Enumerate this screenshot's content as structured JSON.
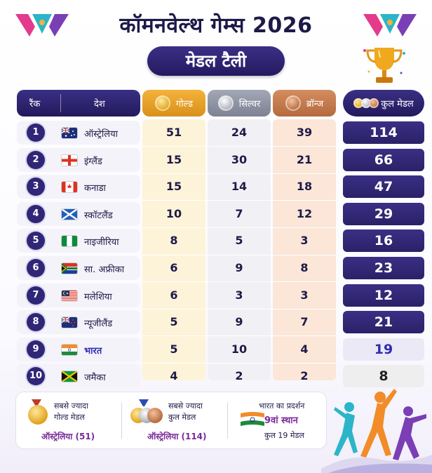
{
  "title": "कॉमनवेल्थ गेम्स 2026",
  "subtitle": "मेडल टैली",
  "headers": {
    "rank": "रैंक",
    "country": "देश",
    "gold": "गोल्ड",
    "silver": "सिल्वर",
    "bronze": "ब्रॉन्ज",
    "total": "कुल मेडल"
  },
  "rows": [
    {
      "rank": "1",
      "country": "ऑस्ट्रेलिया",
      "flag": "australia-flag",
      "gold": "51",
      "silver": "24",
      "bronze": "39",
      "total": "114"
    },
    {
      "rank": "2",
      "country": "इंग्लैंड",
      "flag": "england-flag",
      "gold": "15",
      "silver": "30",
      "bronze": "21",
      "total": "66"
    },
    {
      "rank": "3",
      "country": "कनाडा",
      "flag": "canada-flag",
      "gold": "15",
      "silver": "14",
      "bronze": "18",
      "total": "47"
    },
    {
      "rank": "4",
      "country": "स्कॉटलैंड",
      "flag": "scotland-flag",
      "gold": "10",
      "silver": "7",
      "bronze": "12",
      "total": "29"
    },
    {
      "rank": "5",
      "country": "नाइजीरिया",
      "flag": "nigeria-flag",
      "gold": "8",
      "silver": "5",
      "bronze": "3",
      "total": "16"
    },
    {
      "rank": "6",
      "country": "सा. अफ्रीका",
      "flag": "south-africa-flag",
      "gold": "6",
      "silver": "9",
      "bronze": "8",
      "total": "23"
    },
    {
      "rank": "7",
      "country": "मलेशिया",
      "flag": "malaysia-flag",
      "gold": "6",
      "silver": "3",
      "bronze": "3",
      "total": "12"
    },
    {
      "rank": "8",
      "country": "न्यूजीलैंड",
      "flag": "new-zealand-flag",
      "gold": "5",
      "silver": "9",
      "bronze": "7",
      "total": "21"
    },
    {
      "rank": "9",
      "country": "भारत",
      "flag": "india-flag",
      "gold": "5",
      "silver": "10",
      "bronze": "4",
      "total": "19"
    },
    {
      "rank": "10",
      "country": "जमैका",
      "flag": "jamaica-flag",
      "gold": "4",
      "silver": "2",
      "bronze": "2",
      "total": "8"
    }
  ],
  "footer": {
    "most_gold": {
      "line1": "सबसे ज्यादा",
      "line2": "गोल्ड मेडल",
      "value": "ऑस्ट्रेलिया (51)"
    },
    "most_total": {
      "line1": "सबसे ज्यादा",
      "line2": "कुल मेडल",
      "value": "ऑस्ट्रेलिया (114)"
    },
    "india": {
      "line1": "भारत का प्रदर्शन",
      "position": "9वां स्थान",
      "total": "कुल 19 मेडल"
    }
  },
  "colors": {
    "navy": "#2a2168",
    "gold": "#e5a020",
    "silver": "#9a9eae",
    "bronze": "#c07a4c",
    "accent_purple": "#7a2a9a"
  }
}
